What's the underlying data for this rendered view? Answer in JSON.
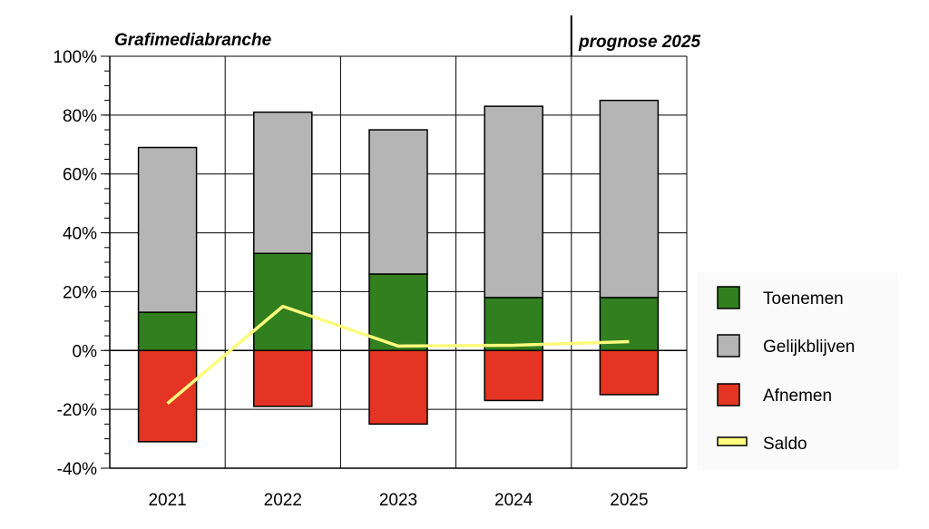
{
  "chart_data": {
    "type": "bar",
    "stacked": true,
    "title": "Grafimediabranche",
    "forecast_label": "prognose 2025",
    "categories": [
      "2021",
      "2022",
      "2023",
      "2024",
      "2025"
    ],
    "series": [
      {
        "name": "Toenemen",
        "kind": "bar",
        "color": "#317f1e",
        "values": [
          13,
          33,
          26,
          18,
          18
        ]
      },
      {
        "name": "Gelijkblijven",
        "kind": "bar",
        "color": "#b5b5b5",
        "values": [
          56,
          48,
          49,
          65,
          67
        ]
      },
      {
        "name": "Afnemen",
        "kind": "bar",
        "color": "#e43423",
        "values": [
          -31,
          -19,
          -25,
          -17,
          -15
        ]
      },
      {
        "name": "Saldo",
        "kind": "line",
        "color": "#fdfb7d",
        "values": [
          -18,
          15,
          1.5,
          1.8,
          3
        ]
      }
    ],
    "ylim": [
      -40,
      100
    ],
    "yticks": [
      -40,
      -20,
      0,
      20,
      40,
      60,
      80,
      100
    ],
    "ytick_labels": [
      "-40%",
      "-20%",
      "0%",
      "20%",
      "40%",
      "60%",
      "80%",
      "100%"
    ],
    "grid": true,
    "legend_position": "right"
  }
}
